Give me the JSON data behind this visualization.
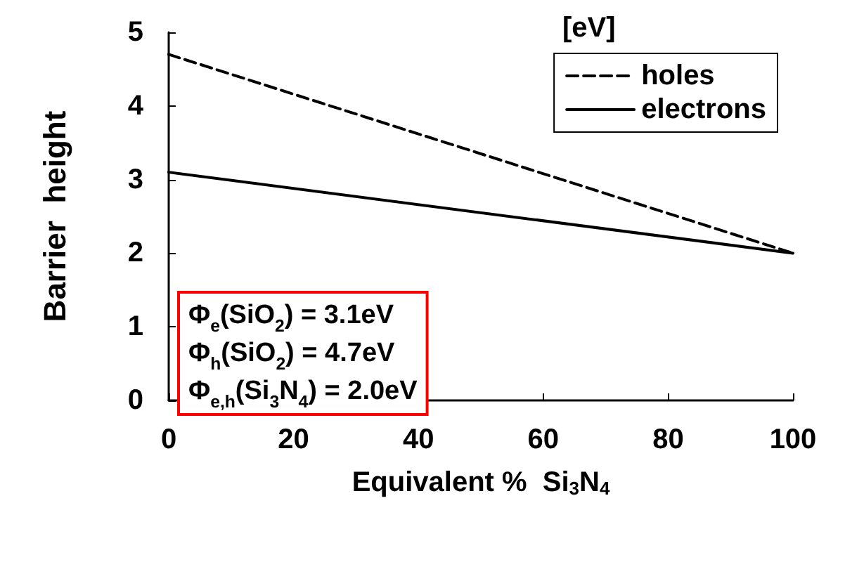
{
  "chart_data": {
    "type": "line",
    "xlabel": "Equivalent %  Si$_{3}$N$_{4}$",
    "ylabel": "Barrier  height",
    "x": [
      0,
      100
    ],
    "series": [
      {
        "name": "holes",
        "color": "#000000",
        "values": [
          4.7,
          2.0
        ],
        "line_style": "dashed"
      },
      {
        "name": "electrons",
        "color": "#000000",
        "values": [
          3.1,
          2.0
        ],
        "line_style": "solid"
      }
    ],
    "xlim": [
      0,
      100
    ],
    "xticks": [
      0,
      20,
      40,
      60,
      80,
      100
    ],
    "ylim": [
      0,
      5
    ],
    "yticks": [
      0,
      1,
      2,
      3,
      4,
      5
    ],
    "grid": false,
    "legend": "top right",
    "marker": "none",
    "annotations": [
      "[eV]",
      "Φ$_{e}$(SiO$_{2}$) = 3.1eV",
      "Φ$_{h}$(SiO$_{2}$) = 4.7eV",
      "Φ$_{e,h}$(Si$_{3}$N$_{4}$) = 2.0eV"
    ]
  }
}
